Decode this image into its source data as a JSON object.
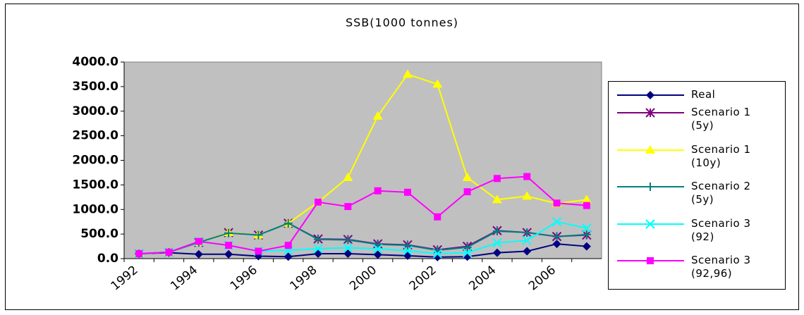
{
  "chart_data": {
    "type": "line",
    "title": "SSB(1000 tonnes)",
    "categories": [
      "1992",
      null,
      "1994",
      null,
      "1996",
      null,
      "1998",
      null,
      "2000",
      null,
      "2002",
      null,
      "2004",
      null,
      "2006",
      null
    ],
    "series": [
      {
        "name": "Real",
        "color": "#000080",
        "marker": "diamond",
        "values": [
          100,
          120,
          90,
          90,
          50,
          40,
          100,
          100,
          80,
          60,
          30,
          40,
          120,
          150,
          300,
          250
        ]
      },
      {
        "name": "Scenario 1 (5y)",
        "color": "#800080",
        "marker": "asterisk",
        "values": [
          100,
          130,
          330,
          530,
          480,
          720,
          400,
          390,
          300,
          280,
          180,
          250,
          570,
          530,
          450,
          480
        ]
      },
      {
        "name": "Scenario 1 (10y)",
        "color": "#ffff00",
        "marker": "triangle",
        "values": [
          100,
          130,
          330,
          530,
          480,
          720,
          1150,
          1650,
          2900,
          3750,
          3550,
          1650,
          1200,
          1270,
          1120,
          1200
        ]
      },
      {
        "name": "Scenario 2 (5y)",
        "color": "#008080",
        "marker": "plus",
        "values": [
          100,
          130,
          330,
          520,
          480,
          720,
          390,
          380,
          290,
          270,
          170,
          230,
          560,
          530,
          450,
          490
        ]
      },
      {
        "name": "Scenario 3 (92)",
        "color": "#00ffff",
        "marker": "cross",
        "values": [
          100,
          130,
          350,
          270,
          150,
          170,
          200,
          220,
          200,
          160,
          100,
          120,
          320,
          370,
          750,
          620
        ]
      },
      {
        "name": "Scenario 3 (92,96)",
        "color": "#ff00ff",
        "marker": "square",
        "values": [
          100,
          130,
          350,
          270,
          150,
          270,
          1150,
          1060,
          1380,
          1350,
          850,
          1360,
          1630,
          1670,
          1130,
          1080
        ]
      }
    ],
    "ylim": [
      0,
      4000
    ],
    "yticks": [
      {
        "value": 0,
        "label": "0.0"
      },
      {
        "value": 500,
        "label": "500.0"
      },
      {
        "value": 1000,
        "label": "1000.0"
      },
      {
        "value": 1500,
        "label": "1500.0"
      },
      {
        "value": 2000,
        "label": "2000.0"
      },
      {
        "value": 2500,
        "label": "2500.0"
      },
      {
        "value": 3000,
        "label": "3000.0"
      },
      {
        "value": 3500,
        "label": "3500.0"
      },
      {
        "value": 4000,
        "label": "4000.0"
      }
    ],
    "plot_background": "#c0c0c0",
    "legend": "right"
  }
}
